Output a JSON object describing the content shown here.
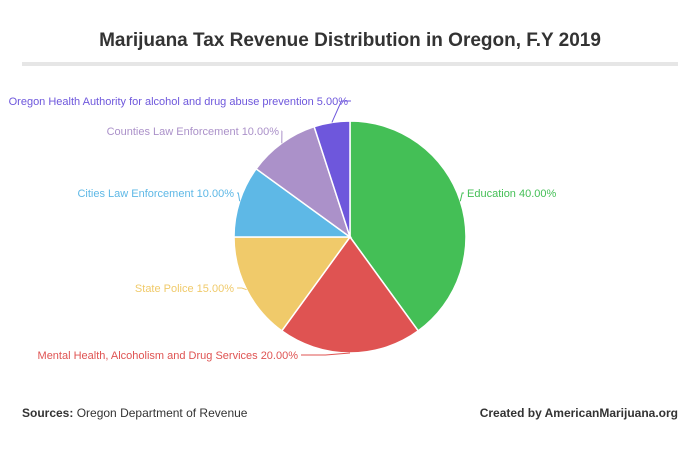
{
  "chart_data": {
    "type": "pie",
    "title": "Marijuana Tax Revenue Distribution in Oregon, F.Y 2019",
    "slices": [
      {
        "label": "Education",
        "value": 40.0,
        "display": "Education 40.00%",
        "color": "#44bf56"
      },
      {
        "label": "Mental Health, Alcoholism and Drug Services",
        "value": 20.0,
        "display": "Mental Health, Alcoholism and Drug Services 20.00%",
        "color": "#df5352"
      },
      {
        "label": "State Police",
        "value": 15.0,
        "display": "State Police 15.00%",
        "color": "#f0ca6a"
      },
      {
        "label": "Cities Law Enforcement",
        "value": 10.0,
        "display": "Cities Law Enforcement 10.00%",
        "color": "#5eb8e6"
      },
      {
        "label": "Counties Law Enforcement",
        "value": 10.0,
        "display": "Counties Law Enforcement 10.00%",
        "color": "#ab91c9"
      },
      {
        "label": "Oregon Health Authority for alcohol and drug abuse prevention",
        "value": 5.0,
        "display": "Oregon Health Authority for alcohol and drug abuse prevention 5.00%",
        "color": "#6e57dc"
      }
    ]
  },
  "footer": {
    "source_label": "Sources:",
    "source_text": "Oregon Department of Revenue",
    "credit": "Created by AmericanMarijuana.org"
  }
}
